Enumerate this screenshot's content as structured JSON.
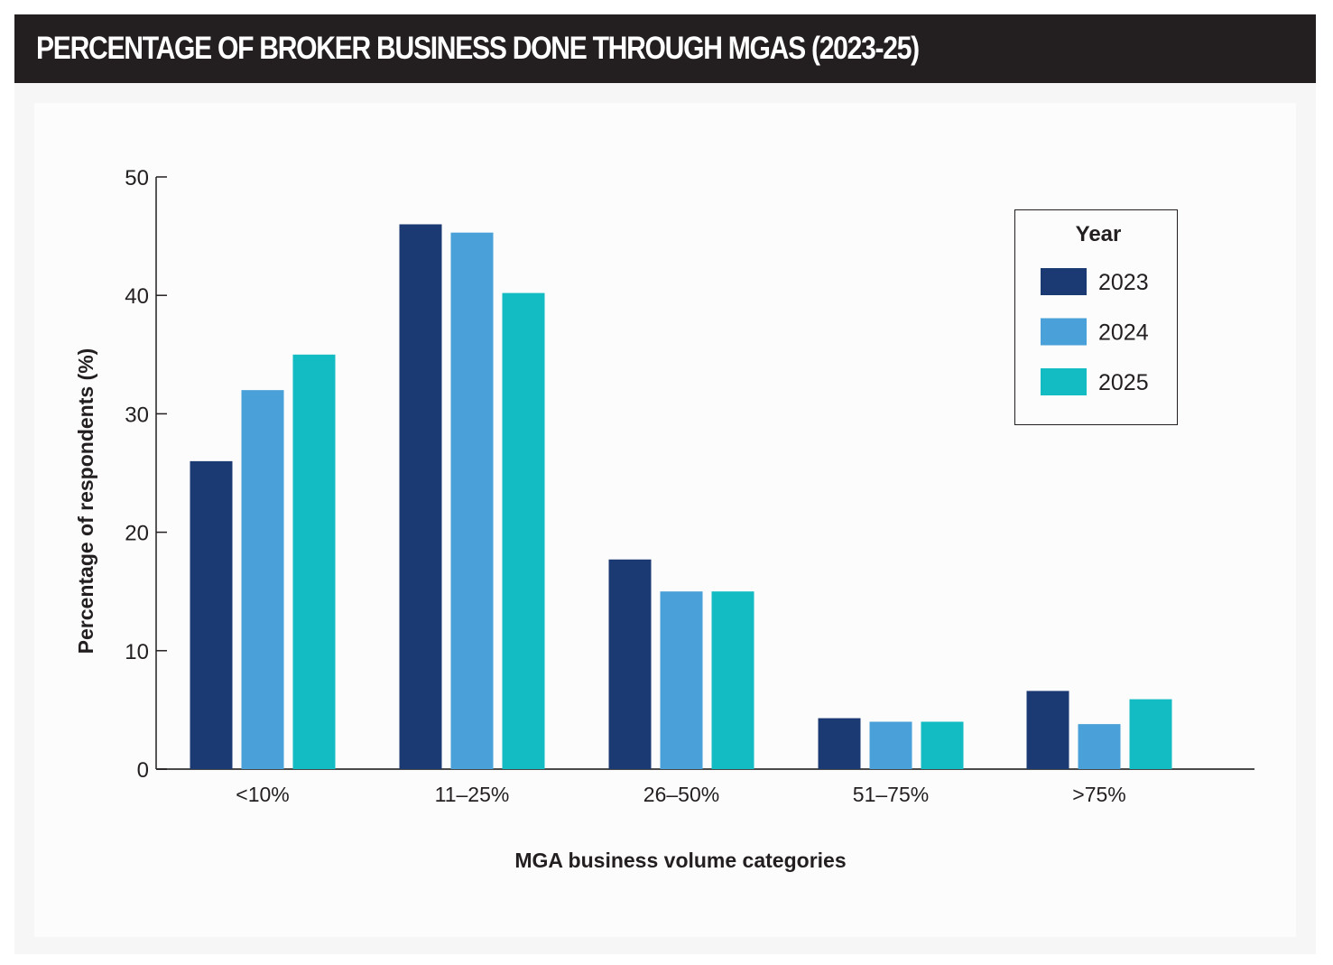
{
  "header": {
    "title": "PERCENTAGE OF BROKER BUSINESS DONE THROUGH MGAS (2023-25)"
  },
  "chart_data": {
    "type": "bar",
    "title": "PERCENTAGE OF BROKER BUSINESS DONE THROUGH MGAS (2023-25)",
    "xlabel": "MGA business volume categories",
    "ylabel": "Percentage of respondents (%)",
    "categories": [
      "<10%",
      "11–25%",
      "26–50%",
      "51–75%",
      ">75%"
    ],
    "ylim": [
      0,
      50
    ],
    "yticks": [
      0,
      10,
      20,
      30,
      40,
      50
    ],
    "grid": false,
    "legend": {
      "title": "Year",
      "position": "top-right"
    },
    "series": [
      {
        "name": "2023",
        "color": "#1b3a73",
        "values": [
          26,
          46,
          17.7,
          4.3,
          6.6
        ]
      },
      {
        "name": "2024",
        "color": "#4aa0d8",
        "values": [
          32,
          45.3,
          15,
          4,
          3.8
        ]
      },
      {
        "name": "2025",
        "color": "#13bcc3",
        "values": [
          35,
          40.2,
          15,
          4,
          5.9
        ]
      }
    ]
  }
}
